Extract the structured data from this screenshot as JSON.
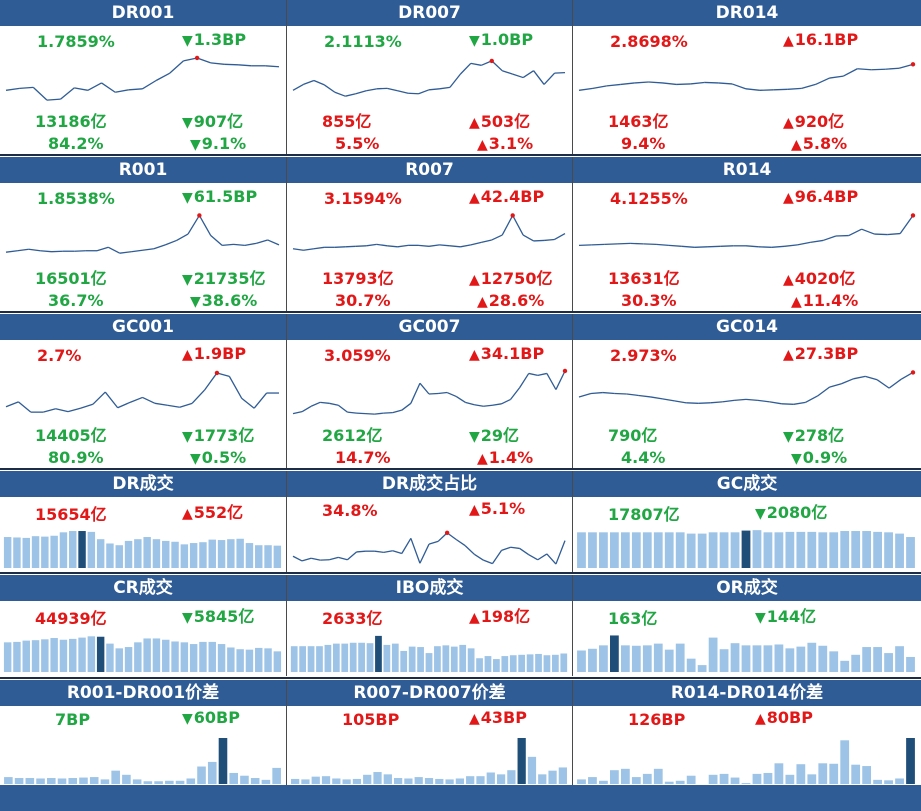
{
  "colors": {
    "header": "#2f5c95",
    "up": "#e21818",
    "down": "#21a644",
    "bar": "#9dc3e6",
    "bar_highlight": "#1f4e79",
    "line": "#2f5c95"
  },
  "line_panels": [
    {
      "title": "DR001",
      "rate": "1.7859%",
      "rate_dir": "down",
      "rate_change": "1.3BP",
      "change_dir": "down",
      "volume": "13186亿",
      "vol_change": "907亿",
      "vol_dir": "down",
      "share": "84.2%",
      "share_change": "9.1%",
      "share_dir": "down",
      "chart_data": {
        "type": "line",
        "values": [
          3,
          3.4,
          3.6,
          1,
          1.2,
          3.5,
          3,
          4.5,
          2.6,
          3.1,
          3.3,
          5,
          6.5,
          9,
          9.6,
          8.6,
          8.3,
          8.2,
          8,
          8,
          7.8
        ],
        "ylim": [
          0,
          10
        ],
        "highlight_index": 14
      }
    },
    {
      "title": "DR007",
      "rate": "2.1113%",
      "rate_dir": "down",
      "rate_change": "1.0BP",
      "change_dir": "down",
      "volume": "855亿",
      "vol_change": "503亿",
      "vol_dir": "up",
      "share": "5.5%",
      "share_change": "3.1%",
      "share_dir": "up",
      "chart_data": {
        "type": "line",
        "values": [
          3,
          4.2,
          5,
          4.1,
          2.6,
          1.8,
          2.3,
          2.9,
          3.3,
          3.4,
          2.9,
          2.4,
          2.3,
          3.1,
          3.3,
          3.6,
          6.3,
          8.5,
          8.1,
          9,
          7,
          6.3,
          5.6,
          7,
          4.2,
          6.5,
          6.6
        ],
        "ylim": [
          0,
          10
        ],
        "highlight_index": 19
      }
    },
    {
      "title": "DR014",
      "rate": "2.8698%",
      "rate_dir": "up",
      "rate_change": "16.1BP",
      "change_dir": "up",
      "volume": "1463亿",
      "vol_change": "920亿",
      "vol_dir": "up",
      "share": "9.4%",
      "share_change": "5.8%",
      "share_dir": "up",
      "chart_data": {
        "type": "line",
        "values": [
          3,
          3.4,
          3.9,
          4.2,
          4.5,
          4.7,
          4.5,
          4.2,
          4.3,
          4.6,
          4.5,
          4.3,
          3.3,
          3,
          3.1,
          3.2,
          3.4,
          4.2,
          5.5,
          5.9,
          7.4,
          7.2,
          7.3,
          7.5,
          8.3
        ],
        "ylim": [
          0,
          10
        ],
        "highlight_index": 24
      }
    },
    {
      "title": "R001",
      "rate": "1.8538%",
      "rate_dir": "down",
      "rate_change": "61.5BP",
      "change_dir": "down",
      "volume": "16501亿",
      "vol_change": "21735亿",
      "vol_dir": "down",
      "share": "36.7%",
      "share_change": "38.6%",
      "share_dir": "down",
      "chart_data": {
        "type": "line",
        "values": [
          2,
          2.3,
          2.6,
          2.3,
          2.1,
          2.2,
          2.2,
          2.3,
          2.3,
          3,
          1.8,
          2.1,
          2.4,
          2.7,
          3.5,
          4.4,
          5.7,
          9.5,
          5.4,
          3.4,
          3.6,
          3.4,
          3.8,
          4.5,
          3.5
        ],
        "ylim": [
          0,
          10
        ],
        "highlight_index": 17
      }
    },
    {
      "title": "R007",
      "rate": "3.1594%",
      "rate_dir": "up",
      "rate_change": "42.4BP",
      "change_dir": "up",
      "volume": "13793亿",
      "vol_change": "12750亿",
      "vol_dir": "up",
      "share": "30.7%",
      "share_change": "28.6%",
      "share_dir": "up",
      "chart_data": {
        "type": "line",
        "values": [
          2.7,
          2.4,
          2.7,
          3,
          3,
          3.1,
          3.2,
          3.3,
          3.6,
          3.3,
          3.1,
          3.4,
          3.4,
          3.2,
          3.5,
          3.3,
          3.1,
          3.5,
          4,
          4.5,
          5.5,
          9.5,
          5.5,
          4.3,
          4.4,
          4.6,
          5.8
        ],
        "ylim": [
          0,
          10
        ],
        "highlight_index": 21
      }
    },
    {
      "title": "R014",
      "rate": "4.1255%",
      "rate_dir": "up",
      "rate_change": "96.4BP",
      "change_dir": "up",
      "volume": "13631亿",
      "vol_change": "4020亿",
      "vol_dir": "up",
      "share": "30.3%",
      "share_change": "11.4%",
      "share_dir": "up",
      "chart_data": {
        "type": "line",
        "values": [
          3.4,
          3.5,
          3.6,
          3.7,
          3.8,
          3.7,
          3.6,
          3.4,
          3.2,
          3,
          3.1,
          3.2,
          3.3,
          3.3,
          3.1,
          3,
          3.2,
          3.5,
          4,
          4.4,
          5.3,
          5.4,
          6.7,
          5.7,
          5.6,
          5.8,
          9.5
        ],
        "ylim": [
          0,
          10
        ],
        "highlight_index": 26
      }
    },
    {
      "title": "GC001",
      "rate": "2.7%",
      "rate_dir": "up",
      "rate_change": "1.9BP",
      "change_dir": "up",
      "volume": "14405亿",
      "vol_change": "1773亿",
      "vol_dir": "down",
      "share": "80.9%",
      "share_change": "0.5%",
      "share_dir": "down",
      "chart_data": {
        "type": "line",
        "values": [
          2.5,
          3.5,
          1.4,
          1.4,
          2.1,
          1.5,
          2.2,
          3,
          5.5,
          2.3,
          3.4,
          4.4,
          3.2,
          2.8,
          2.4,
          3.2,
          5.9,
          9.4,
          8.7,
          4.2,
          2.2,
          5.3,
          5.3
        ],
        "ylim": [
          0,
          10
        ],
        "highlight_index": 17
      }
    },
    {
      "title": "GC007",
      "rate": "3.059%",
      "rate_dir": "up",
      "rate_change": "34.1BP",
      "change_dir": "up",
      "volume": "2612亿",
      "vol_change": "29亿",
      "vol_dir": "down",
      "share": "14.7%",
      "share_change": "1.4%",
      "share_dir": "up",
      "chart_data": {
        "type": "line",
        "values": [
          1.1,
          1.5,
          2.6,
          3.4,
          3.2,
          2.8,
          1.4,
          1.2,
          1.1,
          1,
          1.2,
          1.3,
          1.8,
          3.2,
          7.3,
          5.1,
          5.2,
          5.4,
          4.6,
          3.4,
          2.9,
          2.6,
          2.8,
          3.1,
          4,
          6.4,
          9.3,
          8.9,
          9.3,
          6,
          9.8
        ],
        "ylim": [
          0,
          10
        ],
        "highlight_index": 30
      }
    },
    {
      "title": "GC014",
      "rate": "2.973%",
      "rate_dir": "up",
      "rate_change": "27.3BP",
      "change_dir": "up",
      "volume": "790亿",
      "vol_change": "278亿",
      "vol_dir": "down",
      "share": "4.4%",
      "share_change": "0.9%",
      "share_dir": "down",
      "chart_data": {
        "type": "line",
        "values": [
          4.5,
          5.2,
          5.4,
          5.2,
          5.1,
          4.8,
          4.5,
          4.1,
          3.7,
          3.3,
          3.2,
          3.3,
          3.5,
          3.8,
          4,
          3.8,
          3.5,
          3.1,
          3,
          3.4,
          4.7,
          6.5,
          7.2,
          8.2,
          8.7,
          8,
          6.3,
          8.1,
          9.5
        ],
        "ylim": [
          0,
          10
        ],
        "highlight_index": 28
      }
    }
  ],
  "bar_panels": [
    {
      "title": "DR成交",
      "value": "15654亿",
      "value_color": "up",
      "change": "552亿",
      "change_dir": "up",
      "chart_data": {
        "type": "bar",
        "values": [
          7.2,
          7.1,
          7,
          7.4,
          7.3,
          7.5,
          8.3,
          8.6,
          8.6,
          8.4,
          6.7,
          5.7,
          5.3,
          6.3,
          6.7,
          7.2,
          6.7,
          6.3,
          6.1,
          5.5,
          5.8,
          6,
          6.6,
          6.5,
          6.7,
          6.8,
          5.8,
          5.3,
          5.3,
          5.2
        ],
        "ylim": [
          0,
          10
        ],
        "highlight_index": 8
      }
    },
    {
      "title": "DR成交占比",
      "value": "34.8%",
      "value_color": "up",
      "change": "5.1%",
      "change_dir": "up",
      "chart_data": {
        "type": "line",
        "values": [
          2.5,
          1.3,
          2,
          1.5,
          1.6,
          2.2,
          1.6,
          3.6,
          3.8,
          3.8,
          3.5,
          3.9,
          3.2,
          7.1,
          0.7,
          5.6,
          6.3,
          8.5,
          6.8,
          5.2,
          3,
          1.5,
          0.6,
          4,
          4.8,
          4.5,
          2.9,
          1.6,
          3.1,
          0.5,
          6.5
        ],
        "ylim": [
          0,
          10
        ],
        "highlight_index": 17
      }
    },
    {
      "title": "GC成交",
      "value": "17807亿",
      "value_color": "down",
      "change": "2080亿",
      "change_dir": "down",
      "chart_data": {
        "type": "bar",
        "values": [
          8.3,
          8.3,
          8.3,
          8.3,
          8.3,
          8.3,
          8.3,
          8.3,
          8.3,
          8.3,
          8,
          8,
          8.3,
          8.3,
          8.3,
          8.7,
          8.8,
          8.3,
          8.3,
          8.4,
          8.4,
          8.4,
          8.3,
          8.3,
          8.6,
          8.6,
          8.6,
          8.4,
          8.3,
          8,
          7.2
        ],
        "ylim": [
          0,
          10
        ],
        "highlight_index": 15
      }
    },
    {
      "title": "CR成交",
      "value": "44939亿",
      "value_color": "up",
      "change": "5845亿",
      "change_dir": "down",
      "chart_data": {
        "type": "bar",
        "values": [
          6.9,
          7,
          7.3,
          7.4,
          7.6,
          7.9,
          7.5,
          7.7,
          8,
          8.3,
          8.2,
          6.6,
          5.5,
          5.8,
          6.9,
          7.8,
          7.8,
          7.5,
          7.1,
          6.9,
          6.5,
          7,
          7,
          6.5,
          5.7,
          5.3,
          5.2,
          5.6,
          5.5,
          4.8
        ],
        "ylim": [
          0,
          10
        ],
        "highlight_index": 10
      }
    },
    {
      "title": "IBO成交",
      "value": "2633亿",
      "value_color": "up",
      "change": "198亿",
      "change_dir": "up",
      "chart_data": {
        "type": "bar",
        "values": [
          6,
          6,
          6,
          6,
          6.3,
          6.6,
          6.6,
          6.8,
          6.8,
          6.7,
          8.4,
          6.3,
          6.6,
          4.9,
          5.9,
          5.8,
          4.4,
          6,
          6.2,
          5.9,
          6.3,
          5.5,
          3.2,
          3.7,
          3,
          3.7,
          3.9,
          4,
          4.1,
          4.2,
          3.9,
          4,
          4.3
        ],
        "ylim": [
          0,
          10
        ],
        "highlight_index": 10
      }
    },
    {
      "title": "OR成交",
      "value": "163亿",
      "value_color": "down",
      "change": "144亿",
      "change_dir": "down",
      "chart_data": {
        "type": "bar",
        "values": [
          5,
          5.4,
          6.2,
          8.5,
          6.2,
          6.1,
          6.2,
          6.6,
          5.2,
          6.6,
          3.1,
          1.6,
          8,
          5.3,
          6.7,
          6.2,
          6.2,
          6.2,
          6.4,
          5.5,
          5.9,
          6.8,
          6.1,
          4.8,
          2.6,
          4,
          5.8,
          5.8,
          4.4,
          6,
          3.5
        ],
        "ylim": [
          0,
          10
        ],
        "highlight_index": 3
      }
    },
    {
      "title": "R001-DR001价差",
      "value": "7BP",
      "value_color": "down",
      "change": "60BP",
      "change_dir": "down",
      "chart_data": {
        "type": "bar",
        "values": [
          1.5,
          1.3,
          1.3,
          1.2,
          1.3,
          1.2,
          1.3,
          1.4,
          1.5,
          1,
          2.9,
          2,
          1,
          0.6,
          0.6,
          0.7,
          0.7,
          1.2,
          3.8,
          4.8,
          10,
          2.4,
          1.8,
          1.3,
          0.9,
          3.5
        ],
        "ylim": [
          0,
          10
        ],
        "highlight_index": 20
      }
    },
    {
      "title": "R007-DR007价差",
      "value": "105BP",
      "value_color": "up",
      "change": "43BP",
      "change_dir": "up",
      "chart_data": {
        "type": "bar",
        "values": [
          1.1,
          1,
          1.6,
          1.7,
          1.2,
          1,
          1.1,
          2,
          2.6,
          2.1,
          1.3,
          1.2,
          1.5,
          1.3,
          1.1,
          1,
          1.2,
          1.7,
          1.7,
          2.5,
          2.1,
          3,
          10,
          5.9,
          2.1,
          2.9,
          3.6
        ],
        "ylim": [
          0,
          10
        ],
        "highlight_index": 22
      }
    },
    {
      "title": "R014-DR014价差",
      "value": "126BP",
      "value_color": "up",
      "change": "80BP",
      "change_dir": "up",
      "chart_data": {
        "type": "bar",
        "values": [
          1,
          1.5,
          0.7,
          3,
          3.3,
          1.5,
          2.2,
          3.3,
          0.5,
          0.7,
          1.8,
          0,
          2,
          2.2,
          1.4,
          0.2,
          2.2,
          2.4,
          4.5,
          2,
          4.3,
          2.1,
          4.5,
          4.4,
          9.5,
          4.2,
          3.9,
          0.9,
          0.8,
          1.2,
          10
        ],
        "ylim": [
          0,
          10
        ],
        "highlight_index": 30
      }
    }
  ]
}
